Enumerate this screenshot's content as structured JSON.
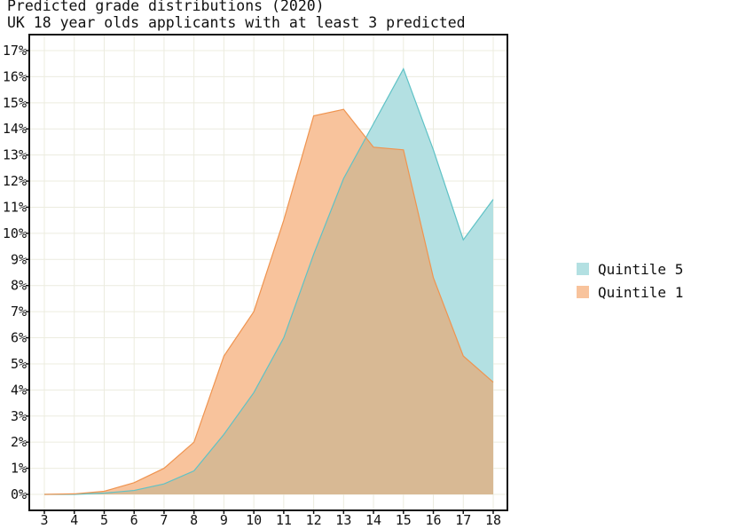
{
  "chart_data": {
    "type": "area",
    "title": "Predicted grade distributions (2020)",
    "subtitle": "UK 18 year olds applicants with at least 3 predicted",
    "xlabel": "",
    "ylabel": "",
    "x": [
      3,
      4,
      5,
      6,
      7,
      8,
      9,
      10,
      11,
      12,
      13,
      14,
      15,
      16,
      17,
      18
    ],
    "xlim": [
      3,
      18
    ],
    "ylim": [
      0,
      17
    ],
    "y_tick_values": [
      0,
      1,
      2,
      3,
      4,
      5,
      6,
      7,
      8,
      9,
      10,
      11,
      12,
      13,
      14,
      15,
      16,
      17
    ],
    "y_tick_labels": [
      "0%",
      "1%",
      "2%",
      "3%",
      "4%",
      "5%",
      "6%",
      "7%",
      "8%",
      "9%",
      "10%",
      "11%",
      "12%",
      "13%",
      "14%",
      "15%",
      "16%",
      "17%"
    ],
    "x_tick_labels": [
      "3",
      "4",
      "5",
      "6",
      "7",
      "8",
      "9",
      "10",
      "11",
      "12",
      "13",
      "14",
      "15",
      "16",
      "17",
      "18"
    ],
    "grid": true,
    "legend_position": "right",
    "series": [
      {
        "name": "Quintile 5",
        "fill": "#b3e0e2",
        "stroke": "#5fc2c6",
        "values": [
          0.0,
          0.0,
          0.05,
          0.15,
          0.4,
          0.9,
          2.3,
          3.9,
          6.0,
          9.2,
          12.1,
          14.2,
          16.3,
          13.2,
          9.75,
          11.3
        ]
      },
      {
        "name": "Quintile 1",
        "fill": "#f8c39c",
        "stroke": "#ef9450",
        "values": [
          0.0,
          0.02,
          0.12,
          0.45,
          1.0,
          2.0,
          5.3,
          7.0,
          10.5,
          14.5,
          14.75,
          13.3,
          13.2,
          8.3,
          5.3,
          4.3
        ]
      }
    ],
    "overlap_fill": "#d8b994"
  }
}
